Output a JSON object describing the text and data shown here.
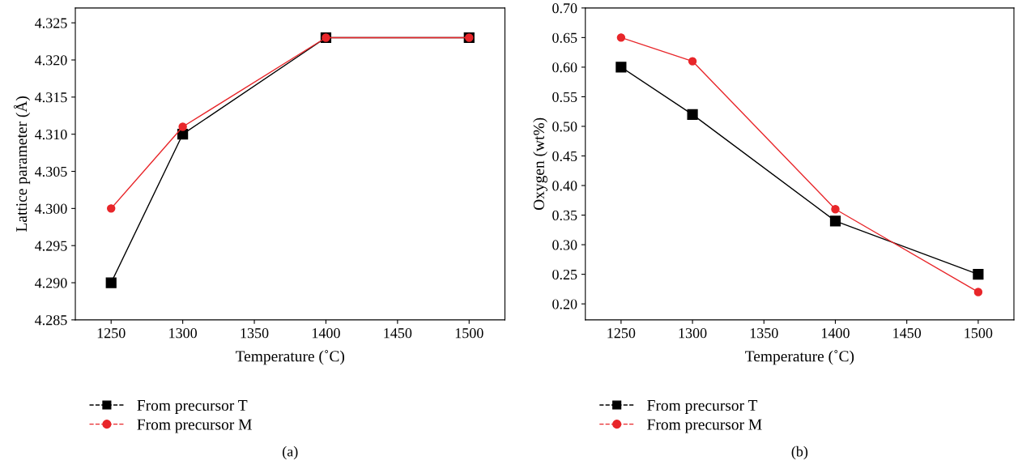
{
  "chart_data": [
    {
      "type": "line",
      "xlabel": "Temperature (˚C)",
      "ylabel": "Lattice parameter (Å)",
      "x": [
        1250,
        1300,
        1400,
        1500
      ],
      "series": [
        {
          "name": "From precursor T",
          "color": "#000000",
          "values": [
            4.29,
            4.31,
            4.323,
            4.323
          ],
          "marker": "square"
        },
        {
          "name": "From precursor M",
          "color": "#e8262a",
          "values": [
            4.3,
            4.311,
            4.323,
            4.323
          ],
          "marker": "circle"
        }
      ],
      "xlim": [
        1225,
        1525
      ],
      "xticks": [
        1250,
        1300,
        1350,
        1400,
        1450,
        1500
      ],
      "ylim": [
        4.285,
        4.327
      ],
      "yticks": [
        {
          "value": 4.285,
          "label": "4.285"
        },
        {
          "value": 4.29,
          "label": "4.290"
        },
        {
          "value": 4.295,
          "label": "4.295"
        },
        {
          "value": 4.3,
          "label": "4.300"
        },
        {
          "value": 4.305,
          "label": "4.305"
        },
        {
          "value": 4.31,
          "label": "4.310"
        },
        {
          "value": 4.315,
          "label": "4.315"
        },
        {
          "value": 4.32,
          "label": "4.320"
        },
        {
          "value": 4.325,
          "label": "4.325"
        }
      ],
      "grid": false,
      "legend": "bottom",
      "annotations": [
        "(a)"
      ]
    },
    {
      "type": "line",
      "xlabel": "Temperature (˚C)",
      "ylabel": "Oxygen (wt%)",
      "x": [
        1250,
        1300,
        1400,
        1500
      ],
      "series": [
        {
          "name": "From precursor T",
          "color": "#000000",
          "values": [
            0.6,
            0.52,
            0.34,
            0.25
          ],
          "marker": "square"
        },
        {
          "name": "From precursor M",
          "color": "#e8262a",
          "values": [
            0.65,
            0.61,
            0.36,
            0.22
          ],
          "marker": "circle"
        }
      ],
      "xlim": [
        1225,
        1525
      ],
      "xticks": [
        1250,
        1300,
        1350,
        1400,
        1450,
        1500
      ],
      "ylim": [
        0.173,
        0.7
      ],
      "yticks": [
        {
          "value": 0.2,
          "label": "0.20"
        },
        {
          "value": 0.25,
          "label": "0.25"
        },
        {
          "value": 0.3,
          "label": "0.30"
        },
        {
          "value": 0.35,
          "label": "0.35"
        },
        {
          "value": 0.4,
          "label": "0.40"
        },
        {
          "value": 0.45,
          "label": "0.45"
        },
        {
          "value": 0.5,
          "label": "0.50"
        },
        {
          "value": 0.55,
          "label": "0.55"
        },
        {
          "value": 0.6,
          "label": "0.60"
        },
        {
          "value": 0.65,
          "label": "0.65"
        },
        {
          "value": 0.7,
          "label": "0.70"
        }
      ],
      "grid": false,
      "legend": "bottom",
      "annotations": [
        "(b)"
      ]
    }
  ]
}
